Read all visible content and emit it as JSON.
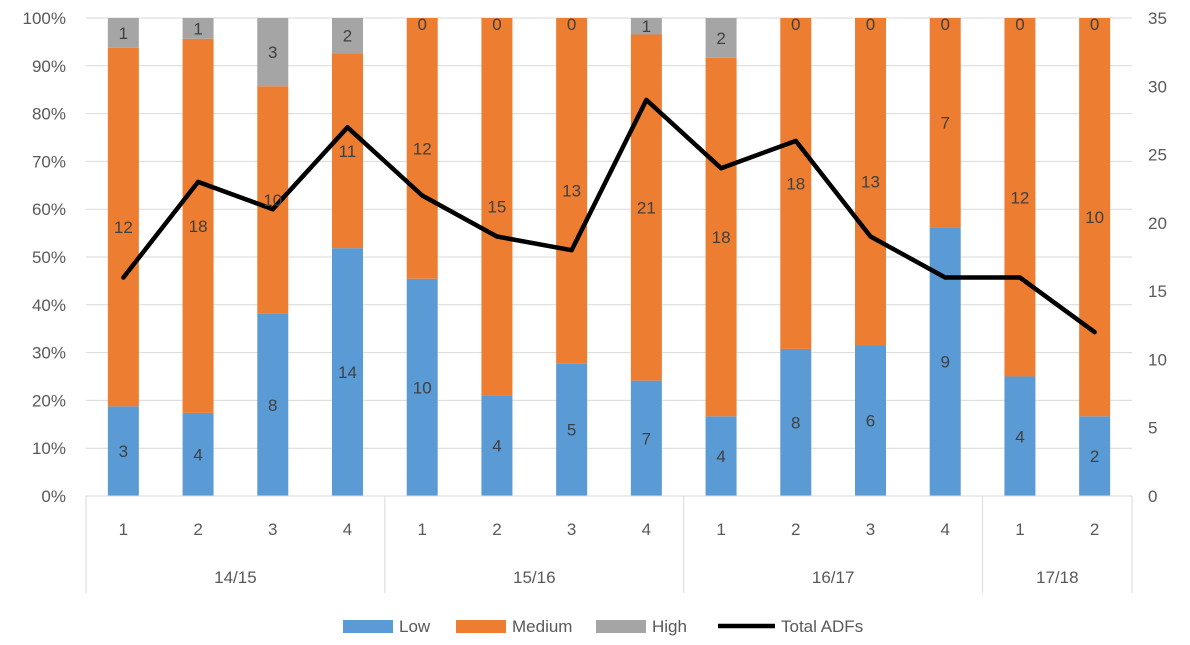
{
  "chart_data": {
    "type": "bar",
    "stacking": "percent",
    "quarters": [
      "1",
      "2",
      "3",
      "4",
      "1",
      "2",
      "3",
      "4",
      "1",
      "2",
      "3",
      "4",
      "1",
      "2"
    ],
    "years": [
      {
        "label": "14/15",
        "count": 4
      },
      {
        "label": "15/16",
        "count": 4
      },
      {
        "label": "16/17",
        "count": 4
      },
      {
        "label": "17/18",
        "count": 2
      }
    ],
    "series": [
      {
        "name": "Low",
        "type": "bar",
        "color": "#5B9BD5",
        "values": [
          3,
          4,
          8,
          14,
          10,
          4,
          5,
          7,
          4,
          8,
          6,
          9,
          4,
          2
        ]
      },
      {
        "name": "Medium",
        "type": "bar",
        "color": "#ED7D31",
        "values": [
          12,
          18,
          10,
          11,
          12,
          15,
          13,
          21,
          18,
          18,
          13,
          7,
          12,
          10
        ]
      },
      {
        "name": "High",
        "type": "bar",
        "color": "#A5A5A5",
        "values": [
          1,
          1,
          3,
          2,
          0,
          0,
          0,
          1,
          2,
          0,
          0,
          0,
          0,
          0
        ]
      },
      {
        "name": "Total ADFs",
        "type": "line",
        "axis": "secondary",
        "color": "#000000",
        "values": [
          16,
          23,
          21,
          27,
          22,
          19,
          18,
          29,
          24,
          26,
          19,
          16,
          16,
          12
        ]
      }
    ],
    "y_primary": {
      "min": 0,
      "max": 100,
      "step": 10,
      "format": "percent"
    },
    "y_secondary": {
      "min": 0,
      "max": 35,
      "step": 5
    },
    "legend_position": "bottom",
    "grid": true
  }
}
